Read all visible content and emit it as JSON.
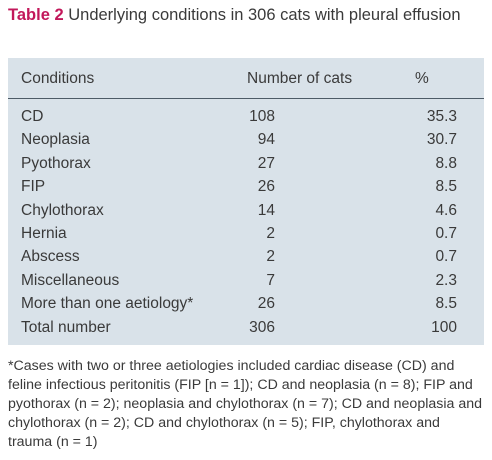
{
  "caption": {
    "label": "Table 2",
    "text": "Underlying conditions in 306 cats with pleural effusion"
  },
  "table": {
    "headers": {
      "conditions": "Conditions",
      "number": "Number of cats",
      "percent": "%"
    },
    "rows": [
      {
        "condition": "CD",
        "number": "108",
        "percent": "35.3"
      },
      {
        "condition": "Neoplasia",
        "number": "94",
        "percent": "30.7"
      },
      {
        "condition": "Pyothorax",
        "number": "27",
        "percent": "8.8"
      },
      {
        "condition": "FIP",
        "number": "26",
        "percent": "8.5"
      },
      {
        "condition": "Chylothorax",
        "number": "14",
        "percent": "4.6"
      },
      {
        "condition": "Hernia",
        "number": "2",
        "percent": "0.7"
      },
      {
        "condition": "Abscess",
        "number": "2",
        "percent": "0.7"
      },
      {
        "condition": "Miscellaneous",
        "number": "7",
        "percent": "2.3"
      },
      {
        "condition": "More than one aetiology*",
        "number": "26",
        "percent": "8.5"
      },
      {
        "condition": "Total number",
        "number": "306",
        "percent": "100"
      }
    ]
  },
  "footnote": "*Cases with two or three aetiologies included cardiac disease (CD) and feline infectious peritonitis (FIP [n = 1]); CD and neoplasia (n = 8); FIP and pyothorax (n = 2); neoplasia and chylothorax (n = 7); CD and neoplasia and chylothorax (n = 2); CD and chylothorax (n = 5); FIP, chylothorax and trauma (n = 1)",
  "colors": {
    "accent": "#c2185b",
    "table_background": "#d9e2e9",
    "rule": "#4d5b66",
    "text": "#3a3a3a"
  }
}
